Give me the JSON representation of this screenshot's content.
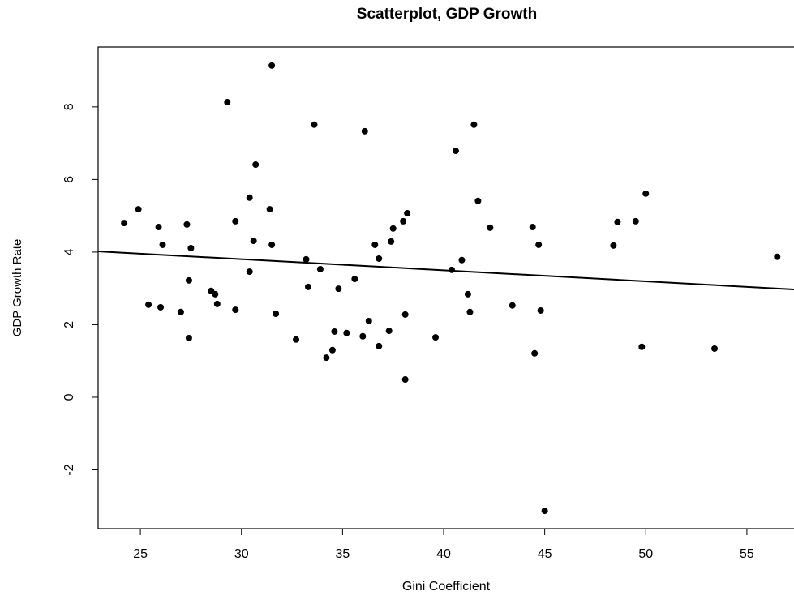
{
  "chart_data": {
    "type": "scatter",
    "title": "Scatterplot, GDP Growth",
    "x_label": "Gini Coefficient",
    "y_label": "GDP Growth Rate",
    "color": "#000000",
    "x": [
      24.2,
      24.9,
      25.4,
      25.9,
      26.0,
      26.1,
      27.0,
      27.3,
      27.4,
      27.4,
      27.5,
      28.5,
      28.7,
      28.8,
      29.3,
      29.7,
      29.7,
      30.4,
      30.4,
      30.6,
      30.7,
      31.4,
      31.5,
      31.5,
      31.7,
      32.7,
      33.2,
      33.3,
      33.6,
      33.9,
      34.2,
      34.5,
      34.6,
      34.8,
      35.2,
      35.6,
      36.0,
      36.1,
      36.3,
      36.6,
      36.8,
      36.8,
      37.3,
      37.4,
      37.5,
      38.0,
      38.1,
      38.1,
      38.2,
      39.6,
      40.4,
      40.6,
      40.9,
      41.2,
      41.3,
      41.5,
      41.7,
      42.3,
      43.4,
      44.4,
      44.5,
      44.7,
      44.8,
      45.0,
      48.4,
      48.6,
      49.5,
      49.8,
      50.0,
      53.4,
      56.5
    ],
    "values": [
      4.8,
      5.18,
      2.55,
      4.69,
      2.48,
      4.2,
      2.35,
      4.76,
      3.22,
      1.63,
      4.11,
      2.93,
      2.84,
      2.57,
      8.13,
      4.85,
      2.41,
      5.5,
      3.46,
      4.31,
      6.41,
      5.18,
      9.14,
      4.2,
      2.3,
      1.59,
      3.8,
      3.04,
      7.51,
      3.53,
      1.09,
      1.3,
      1.81,
      2.99,
      1.77,
      3.26,
      1.68,
      7.33,
      2.1,
      4.2,
      3.82,
      1.41,
      1.83,
      4.29,
      4.65,
      4.85,
      0.49,
      2.28,
      5.07,
      1.65,
      3.51,
      6.79,
      3.78,
      2.84,
      2.35,
      7.51,
      5.41,
      4.67,
      2.53,
      4.69,
      1.21,
      4.2,
      2.39,
      -3.13,
      4.18,
      4.83,
      4.85,
      1.39,
      5.61,
      1.34,
      3.87
    ],
    "fit_line": {
      "x": [
        22.91,
        57.33
      ],
      "y": [
        4.02,
        2.97
      ]
    },
    "xlim": [
      22.91,
      57.33
    ],
    "ylim": [
      -3.62,
      9.65
    ],
    "xticks": [
      25,
      30,
      35,
      40,
      45,
      50,
      55
    ],
    "yticks": [
      -2,
      0,
      2,
      4,
      6,
      8
    ]
  }
}
